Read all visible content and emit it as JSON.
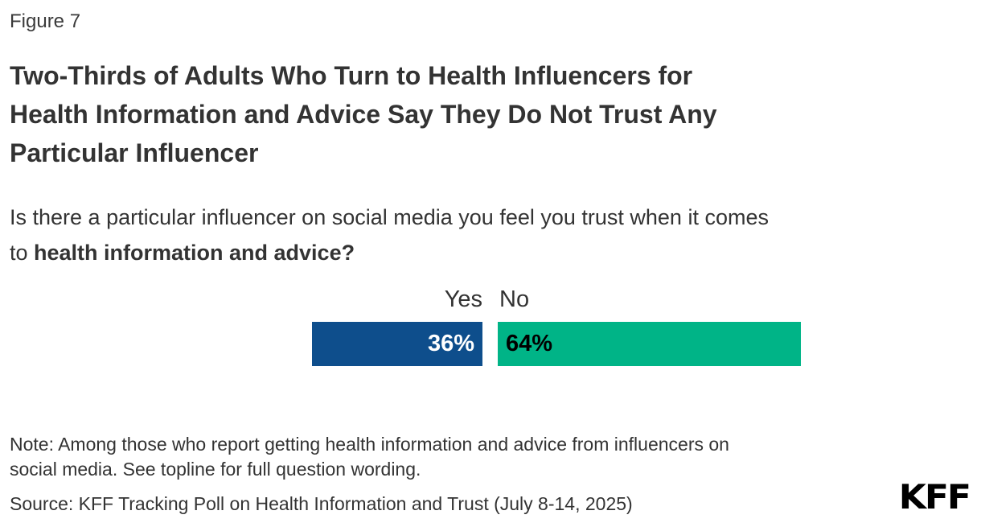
{
  "figure_label": "Figure 7",
  "title": {
    "lines": [
      "Two-Thirds of Adults Who Turn to Health Influencers for",
      "Health Information and Advice Say They Do Not Trust Any",
      "Particular Influencer"
    ]
  },
  "subtitle": {
    "line1": "Is there a particular influencer on social media you feel you trust when it comes",
    "line2_regular": "to ",
    "line2_bold": "health information and advice?"
  },
  "chart_data": {
    "type": "bar",
    "orientation": "horizontal",
    "categories": [
      "Yes",
      "No"
    ],
    "values": [
      36,
      64
    ],
    "value_labels": [
      "36%",
      "64%"
    ],
    "colors": [
      "#0E4E8C",
      "#00B487"
    ],
    "value_label_colors": [
      "#ffffff",
      "#000000"
    ],
    "unit": "percent",
    "legend_position": "above-bars",
    "grid": false,
    "axis": "none"
  },
  "note": {
    "lines": [
      "Note: Among those who report getting health information and advice from influencers on",
      "social media. See topline for full question wording."
    ]
  },
  "source": {
    "text": "Source: KFF Tracking Poll on Health Information and Trust (July 8-14, 2025)"
  },
  "logo": {
    "text": "KFF"
  }
}
